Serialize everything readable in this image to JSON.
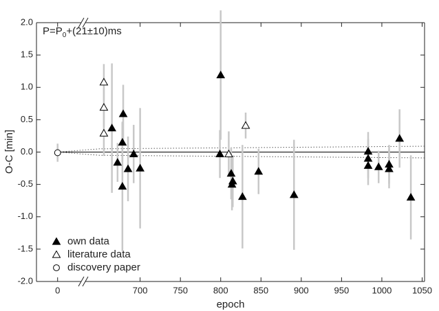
{
  "chart_data": {
    "type": "errorbar-scatter",
    "annotation": {
      "text": "P=P",
      "subscript": "0",
      "suffix": "+(21±10)ms"
    },
    "x_label": "epoch",
    "y_label": "O-C [min]",
    "xlim": [
      -26,
      1053
    ],
    "xbreak": [
      29,
      632
    ],
    "ylim": [
      -2,
      2
    ],
    "xticks": [
      0,
      700,
      750,
      800,
      850,
      900,
      950,
      1000,
      1050
    ],
    "yticks": [
      {
        "value": 2,
        "label": "2.0"
      },
      1.5,
      {
        "value": 1,
        "label": "1.0"
      },
      0.5,
      {
        "value": 0,
        "label": "0.0"
      },
      -0.5,
      {
        "value": -1,
        "label": "-1.0"
      },
      -1.5,
      {
        "value": -2,
        "label": "-2.0"
      }
    ],
    "legend": "lower left",
    "errorbar_color": "#c8c8c8",
    "series": [
      {
        "name": "own data",
        "marker": "triangle",
        "filled": true,
        "color": "#000000",
        "x": [
          665,
          672,
          679,
          678,
          678,
          685,
          692,
          700,
          800,
          799,
          813,
          814,
          815,
          827,
          847,
          891,
          983,
          983,
          983,
          996,
          1009,
          1009,
          1022,
          1036
        ],
        "values": [
          0.37,
          -0.16,
          0.59,
          0.15,
          -0.53,
          -0.26,
          -0.03,
          -0.25,
          1.19,
          -0.03,
          -0.33,
          -0.5,
          -0.45,
          -0.69,
          -0.3,
          -0.66,
          0.01,
          -0.1,
          -0.21,
          -0.23,
          -0.19,
          -0.26,
          0.21,
          -0.7
        ],
        "errors": [
          1.0,
          0.3,
          0.45,
          0.3,
          1.0,
          0.5,
          0.45,
          0.93,
          1.0,
          0.37,
          0.4,
          0.4,
          0.4,
          0.8,
          0.35,
          0.85,
          0.3,
          0.3,
          0.3,
          0.25,
          0.3,
          0.3,
          0.45,
          0.65
        ]
      },
      {
        "name": "literature data",
        "marker": "triangle",
        "filled": false,
        "color": "#000000",
        "x": [
          655,
          655,
          655,
          810,
          831
        ],
        "values": [
          1.08,
          0.69,
          0.29,
          -0.03,
          0.41
        ],
        "errors": [
          0.28,
          0.3,
          0.35,
          0.35,
          0.2
        ]
      },
      {
        "name": "discovery paper",
        "marker": "circle",
        "filled": false,
        "color": "#000000",
        "x": [
          0
        ],
        "values": [
          -0.01
        ],
        "errors": [
          0.14
        ]
      }
    ],
    "lines": [
      {
        "style": "solid",
        "color": "#000000",
        "x": [
          0,
          1053
        ],
        "values": [
          0,
          0
        ]
      },
      {
        "style": "dotted",
        "color": "#555555",
        "x": [
          0,
          650,
          1053
        ],
        "values": [
          0,
          0.05,
          0.09
        ]
      },
      {
        "style": "dotted",
        "color": "#555555",
        "x": [
          0,
          650,
          1053
        ],
        "values": [
          0,
          -0.05,
          -0.09
        ]
      }
    ]
  }
}
